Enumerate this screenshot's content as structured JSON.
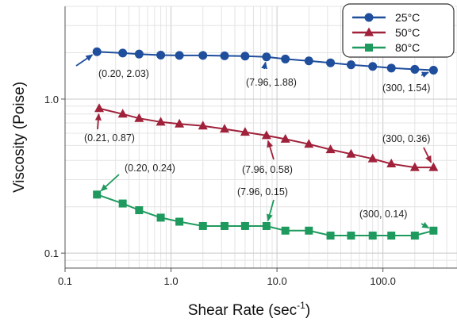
{
  "chart_data": {
    "type": "line",
    "xscale": "log",
    "yscale": "log",
    "xlim": [
      0.1,
      500
    ],
    "ylim": [
      0.08,
      4.0
    ],
    "grid": true,
    "legend_position": "top-right",
    "xlabel_main": "Shear Rate (sec",
    "xlabel_sup": "-1",
    "xlabel_close": ")",
    "ylabel": "Viscosity (Poise)",
    "x_ticks": [
      {
        "value": 0.1,
        "label": "0.1"
      },
      {
        "value": 1,
        "label": "1.0"
      },
      {
        "value": 10,
        "label": "10.0"
      },
      {
        "value": 100,
        "label": "100.0"
      }
    ],
    "y_ticks": [
      {
        "value": 0.1,
        "label": "0.1"
      },
      {
        "value": 1,
        "label": "1.0"
      }
    ],
    "series": [
      {
        "name": "25°C",
        "color": "#1f4e9c",
        "marker": "circle",
        "x": [
          0.2,
          0.35,
          0.5,
          0.8,
          1.2,
          2,
          3.2,
          5,
          7.96,
          12,
          20,
          32,
          50,
          80,
          120,
          200,
          300
        ],
        "y": [
          2.03,
          1.99,
          1.96,
          1.93,
          1.92,
          1.92,
          1.91,
          1.9,
          1.88,
          1.82,
          1.77,
          1.72,
          1.67,
          1.63,
          1.59,
          1.56,
          1.54
        ]
      },
      {
        "name": "50°C",
        "color": "#a0213a",
        "marker": "triangle",
        "x": [
          0.21,
          0.35,
          0.5,
          0.8,
          1.2,
          2,
          3.2,
          5,
          7.96,
          12,
          20,
          32,
          50,
          80,
          120,
          200,
          300
        ],
        "y": [
          0.87,
          0.8,
          0.75,
          0.71,
          0.69,
          0.67,
          0.64,
          0.61,
          0.58,
          0.55,
          0.51,
          0.47,
          0.44,
          0.41,
          0.38,
          0.36,
          0.36
        ]
      },
      {
        "name": "80°C",
        "color": "#1e9a5e",
        "marker": "square",
        "x": [
          0.2,
          0.35,
          0.5,
          0.8,
          1.2,
          2,
          3.2,
          5,
          7.96,
          12,
          20,
          32,
          50,
          80,
          120,
          200,
          300
        ],
        "y": [
          0.24,
          0.21,
          0.19,
          0.17,
          0.16,
          0.15,
          0.15,
          0.15,
          0.15,
          0.14,
          0.14,
          0.13,
          0.13,
          0.13,
          0.13,
          0.13,
          0.14
        ]
      }
    ],
    "annotations": [
      {
        "text": "(0.20, 2.03)",
        "series": 0,
        "x": 0.2,
        "y": 2.03
      },
      {
        "text": "(7.96, 1.88)",
        "series": 0,
        "x": 7.96,
        "y": 1.88
      },
      {
        "text": "(300, 1.54)",
        "series": 0,
        "x": 300,
        "y": 1.54
      },
      {
        "text": "(0.21, 0.87)",
        "series": 1,
        "x": 0.21,
        "y": 0.87
      },
      {
        "text": "(7.96, 0.58)",
        "series": 1,
        "x": 7.96,
        "y": 0.58
      },
      {
        "text": "(300, 0.36)",
        "series": 1,
        "x": 300,
        "y": 0.36
      },
      {
        "text": "(0.20, 0.24)",
        "series": 2,
        "x": 0.2,
        "y": 0.24
      },
      {
        "text": "(7.96, 0.15)",
        "series": 2,
        "x": 7.96,
        "y": 0.15
      },
      {
        "text": "(300, 0.14)",
        "series": 2,
        "x": 300,
        "y": 0.14
      }
    ]
  }
}
